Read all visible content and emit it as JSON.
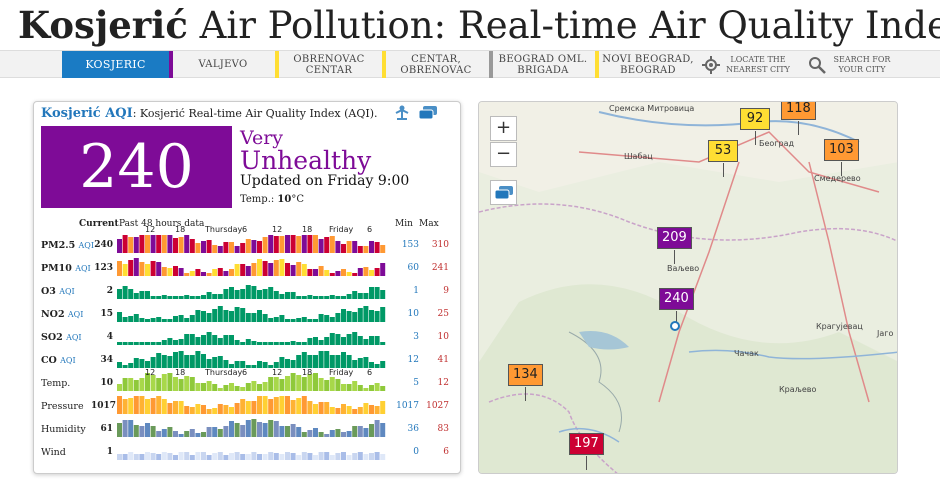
{
  "header": {
    "title_bold": "Kosjerić",
    "title_rest": " Air Pollution: Real-time Air Quality Index (AQI)"
  },
  "nav": {
    "tabs": [
      {
        "label": "Kosjeric",
        "active": true,
        "bar": "#7e0b97"
      },
      {
        "label": "Valjevo",
        "bar": "#ffde33"
      },
      {
        "label": "Obrenovac Centar",
        "bar": "#ffde33"
      },
      {
        "label": "Centar, Obrenovac",
        "bar": "#999999"
      },
      {
        "label": "Beograd Oml. Brigada",
        "bar": "#ffde33"
      },
      {
        "label": "Novi Beograd, Beograd",
        "bar": "#cccccc"
      }
    ],
    "locate_label": "Locate the nearest city",
    "search_label": "Search for your city"
  },
  "card": {
    "city": "Kosjerić AQI",
    "subtitle": ": Kosjerić Real-time Air Quality Index (AQI).",
    "aqi": "240",
    "level_line1": "Very",
    "level_line2": "Unhealthy",
    "updated": "Updated on Friday 9:00",
    "temp_label": "Temp.: ",
    "temp_value": "10",
    "temp_unit": "°C",
    "colors": {
      "very_unhealthy": "#7e0b97"
    }
  },
  "table": {
    "current_header": "Current",
    "past_header": "Past 48 hours data",
    "min_header": "Min",
    "max_header": "Max",
    "time_labels": [
      "12",
      "18",
      "Thursday",
      "6",
      "12",
      "18",
      "Friday",
      "6"
    ],
    "rows": [
      {
        "name": "PM2.5",
        "aqi": "AQI",
        "current": "240",
        "min": "153",
        "max": "310"
      },
      {
        "name": "PM10",
        "aqi": "AQI",
        "current": "123",
        "min": "60",
        "max": "241"
      },
      {
        "name": "O3",
        "aqi": "AQI",
        "current": "2",
        "min": "1",
        "max": "9"
      },
      {
        "name": "NO2",
        "aqi": "AQI",
        "current": "15",
        "min": "10",
        "max": "25"
      },
      {
        "name": "SO2",
        "aqi": "AQI",
        "current": "4",
        "min": "3",
        "max": "10"
      },
      {
        "name": "CO",
        "aqi": "AQI",
        "current": "34",
        "min": "12",
        "max": "41"
      },
      {
        "name": "Temp.",
        "aqi": "",
        "current": "10",
        "min": "5",
        "max": "12"
      },
      {
        "name": "Pressure",
        "aqi": "",
        "current": "1017",
        "min": "1017",
        "max": "1027"
      },
      {
        "name": "Humidity",
        "aqi": "",
        "current": "61",
        "min": "36",
        "max": "83"
      },
      {
        "name": "Wind",
        "aqi": "",
        "current": "1",
        "min": "0",
        "max": "6"
      }
    ]
  },
  "map": {
    "zoom_in": "+",
    "zoom_out": "−",
    "markers": [
      {
        "value": "118",
        "color": "#ff9933"
      },
      {
        "value": "92",
        "color": "#ffde33"
      },
      {
        "value": "53",
        "color": "#ffde33"
      },
      {
        "value": "103",
        "color": "#ff9933"
      },
      {
        "value": "209",
        "color": "#7e0b97"
      },
      {
        "value": "240",
        "color": "#7e0b97"
      },
      {
        "value": "134",
        "color": "#ff9933"
      },
      {
        "value": "197",
        "color": "#cc0033"
      }
    ],
    "places": [
      "Сремска Митровица",
      "Шабац",
      "Ваљево",
      "Смедерево",
      "Крагујевац",
      "Чачак",
      "Краљево",
      "Јаго",
      "Београд"
    ]
  }
}
